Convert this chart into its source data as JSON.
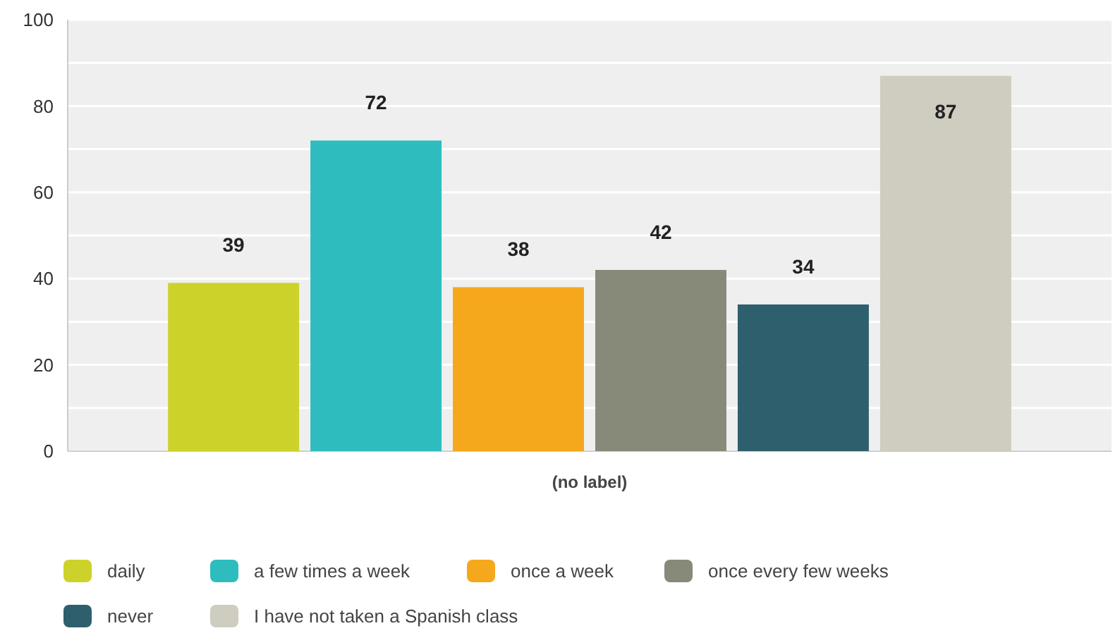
{
  "chart_data": {
    "type": "bar",
    "categories": [
      "(no label)"
    ],
    "series": [
      {
        "name": "daily",
        "color": "#cdd22a",
        "values": [
          39
        ]
      },
      {
        "name": "a few times a week",
        "color": "#2fbcbf",
        "values": [
          72
        ]
      },
      {
        "name": "once a week",
        "color": "#f5a81c",
        "values": [
          38
        ]
      },
      {
        "name": "once every few weeks",
        "color": "#878a78",
        "values": [
          42
        ]
      },
      {
        "name": "never",
        "color": "#2e5f6d",
        "values": [
          34
        ]
      },
      {
        "name": "I have not taken a Spanish class",
        "color": "#cfcdc0",
        "values": [
          87
        ]
      }
    ],
    "ylim": [
      0,
      100
    ],
    "yticks": [
      0,
      {
        "value": 10,
        "label": null
      },
      20,
      {
        "value": 30,
        "label": null
      },
      40,
      {
        "value": 50,
        "label": null
      },
      60,
      {
        "value": 70,
        "label": null
      },
      80,
      {
        "value": 90,
        "label": null
      },
      100
    ],
    "grid": "y",
    "legend": "bottom",
    "data_labels": true
  }
}
